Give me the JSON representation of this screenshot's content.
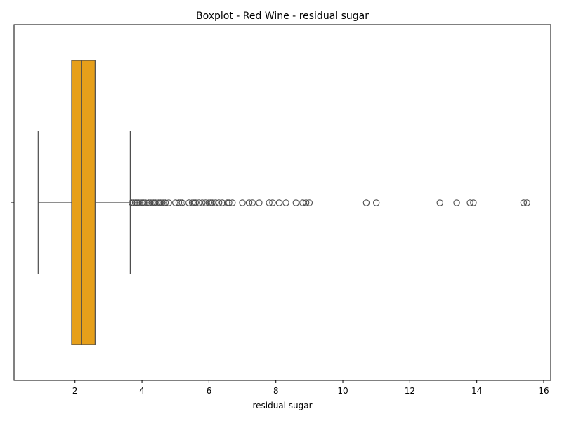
{
  "chart_data": {
    "type": "box",
    "orientation": "horizontal",
    "title": "Boxplot - Red Wine - residual sugar",
    "xlabel": "residual sugar",
    "ylabel": "",
    "xlim": [
      0.18,
      16.21
    ],
    "xticks": [
      2,
      4,
      6,
      8,
      10,
      12,
      14,
      16
    ],
    "grid": false,
    "box": {
      "whisker_low": 0.9,
      "q1": 1.9,
      "median": 2.2,
      "q3": 2.6,
      "whisker_high": 3.65
    },
    "outliers": [
      3.7,
      3.75,
      3.8,
      3.85,
      3.9,
      3.95,
      4.0,
      4.05,
      4.1,
      4.2,
      4.25,
      4.3,
      4.35,
      4.4,
      4.5,
      4.55,
      4.6,
      4.65,
      4.7,
      4.8,
      5.0,
      5.1,
      5.15,
      5.2,
      5.4,
      5.5,
      5.55,
      5.6,
      5.7,
      5.8,
      5.9,
      6.0,
      6.05,
      6.1,
      6.2,
      6.3,
      6.4,
      6.55,
      6.6,
      6.7,
      7.0,
      7.2,
      7.3,
      7.5,
      7.8,
      7.9,
      8.1,
      8.3,
      8.6,
      8.8,
      8.9,
      9.0,
      10.7,
      11.0,
      12.9,
      13.4,
      13.8,
      13.9,
      15.4,
      15.5
    ],
    "colors": {
      "box_fill": "#e69f1a",
      "line": "#4b4b4b",
      "frame": "#000000"
    }
  }
}
